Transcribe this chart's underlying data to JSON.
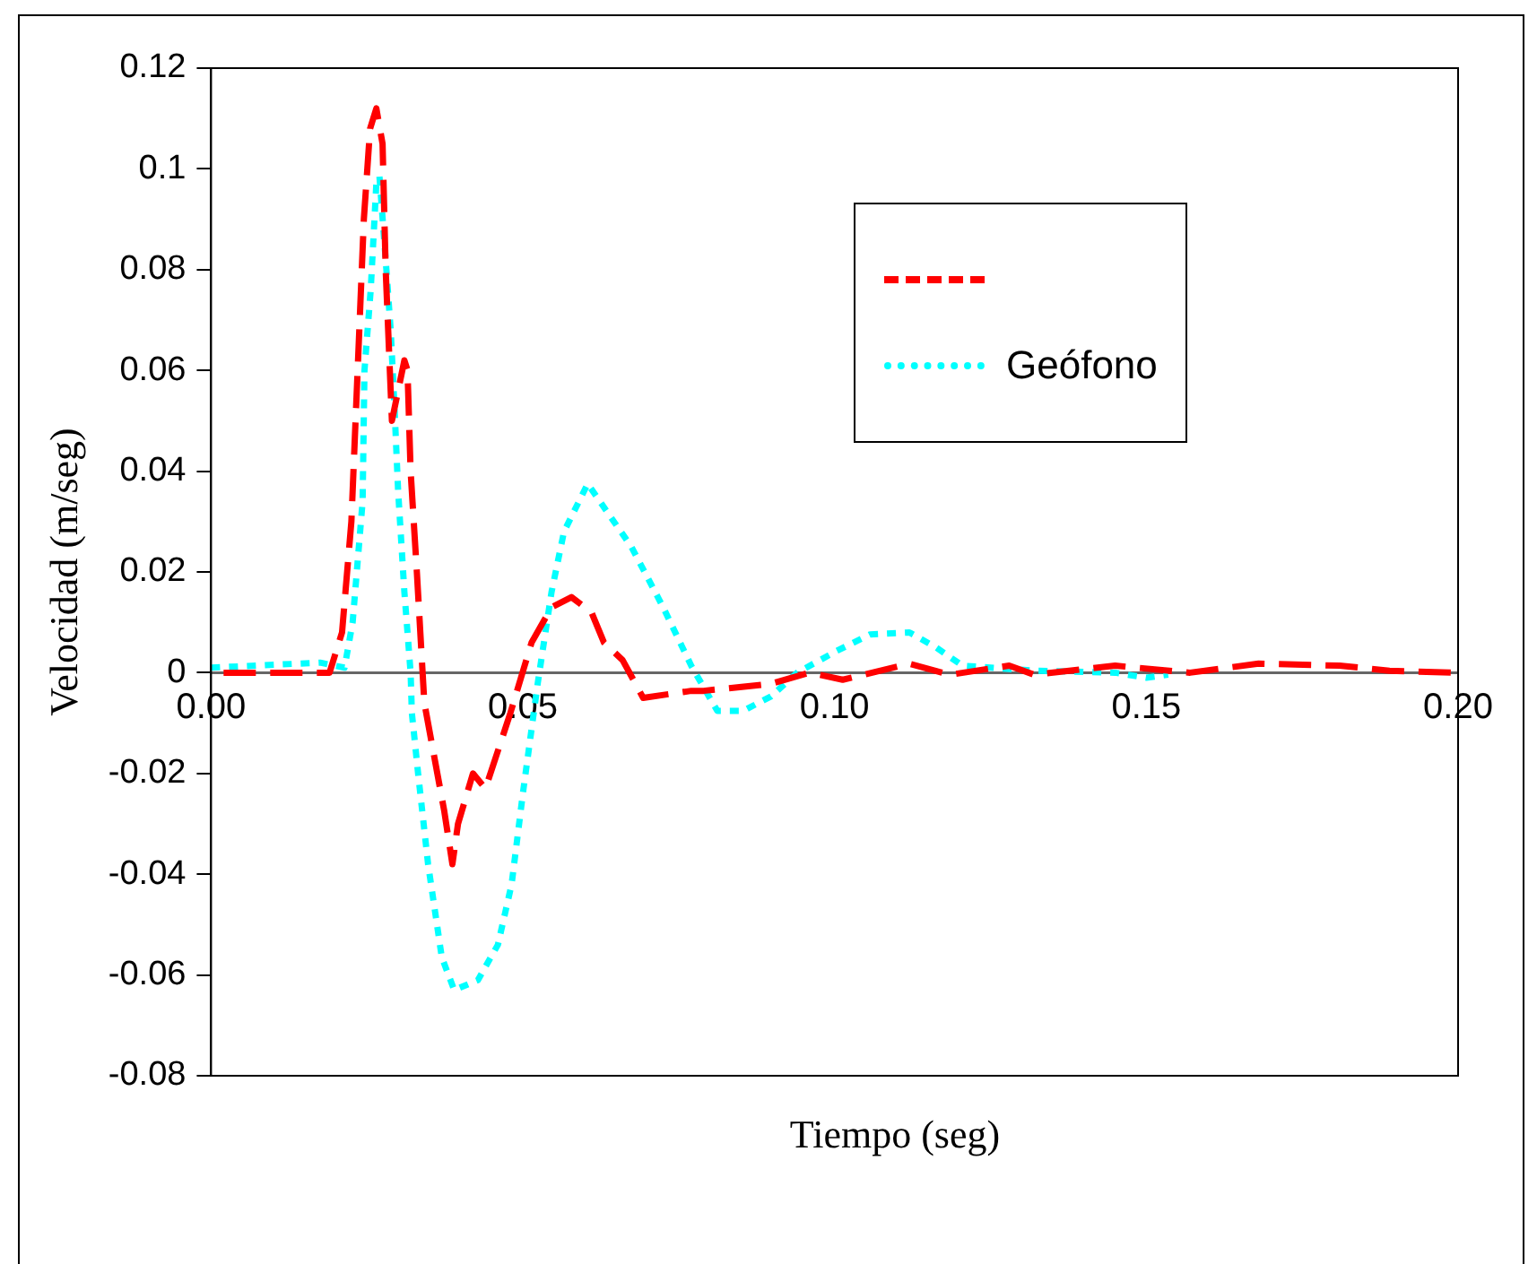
{
  "chart_data": {
    "type": "line",
    "xlabel": "Tiempo (seg)",
    "ylabel": "Velocidad (m/seg)",
    "legend": "top right",
    "marker": "none",
    "xlim": [
      0,
      0.2
    ],
    "xticks": [
      {
        "value": 0,
        "label": "0.00"
      },
      {
        "value": 0.05,
        "label": "0.05"
      },
      {
        "value": 0.1,
        "label": "0.10"
      },
      {
        "value": 0.15,
        "label": "0.15"
      },
      {
        "value": 0.2,
        "label": "0.20"
      }
    ],
    "ylim": [
      -0.08,
      0.12
    ],
    "yticks": [
      -0.08,
      -0.06,
      -0.04,
      -0.02,
      0,
      0.02,
      0.04,
      0.06,
      0.08,
      0.1,
      0.12
    ],
    "series": [
      {
        "color": "#ff0000",
        "line_style": "dashed",
        "x": [
          0.002,
          0.019,
          0.021,
          0.0225,
          0.0235,
          0.0245,
          0.0255,
          0.0265,
          0.0275,
          0.028,
          0.029,
          0.031,
          0.0315,
          0.032,
          0.033,
          0.0342,
          0.0374,
          0.0387,
          0.0396,
          0.042,
          0.044,
          0.048,
          0.0514,
          0.0546,
          0.0578,
          0.061,
          0.063,
          0.066,
          0.0693,
          0.077,
          0.079,
          0.0898,
          0.096,
          0.1013,
          0.112,
          0.1185,
          0.128,
          0.132,
          0.145,
          0.157,
          0.168,
          0.181,
          0.189,
          0.1995
        ],
        "values": [
          0,
          0,
          0.008,
          0.03,
          0.06,
          0.09,
          0.108,
          0.112,
          0.105,
          0.08,
          0.05,
          0.062,
          0.06,
          0.04,
          0.02,
          -0.006,
          -0.0275,
          -0.038,
          -0.03,
          -0.02,
          -0.023,
          -0.008,
          0.006,
          0.013,
          0.015,
          0.012,
          0.006,
          0.0025,
          -0.005,
          -0.0036,
          -0.0036,
          -0.0022,
          0,
          -0.0014,
          0.0018,
          -0.0004,
          0.0014,
          -0.0004,
          0.0014,
          0,
          0.0018,
          0.0014,
          0.0004,
          0
        ]
      },
      {
        "name": "Geófono",
        "color": "#00ffff",
        "line_style": "dotted",
        "x": [
          0,
          0.0175,
          0.0214,
          0.0227,
          0.0243,
          0.0246,
          0.0256,
          0.0265,
          0.027,
          0.028,
          0.0288,
          0.0294,
          0.03,
          0.031,
          0.032,
          0.0322,
          0.0332,
          0.0348,
          0.037,
          0.039,
          0.0428,
          0.046,
          0.0482,
          0.05,
          0.0524,
          0.0546,
          0.0566,
          0.0604,
          0.0674,
          0.0725,
          0.077,
          0.0812,
          0.0853,
          0.0898,
          0.094,
          0.1003,
          0.1057,
          0.112,
          0.1163,
          0.1205,
          0.132,
          0.145,
          0.15,
          0.1535
        ],
        "values": [
          0.001,
          0.002,
          0.001,
          0.01,
          0.034,
          0.06,
          0.076,
          0.097,
          0.0985,
          0.082,
          0.068,
          0.053,
          0.036,
          0.016,
          0,
          -0.008,
          -0.02,
          -0.038,
          -0.0565,
          -0.063,
          -0.061,
          -0.054,
          -0.042,
          -0.024,
          -0.002,
          0.016,
          0.028,
          0.0375,
          0.025,
          0.013,
          0.0014,
          -0.0076,
          -0.0076,
          -0.0047,
          0,
          0.0043,
          0.0076,
          0.008,
          0.005,
          0.0014,
          0.0004,
          0,
          -0.001,
          -0.0004
        ]
      }
    ]
  }
}
